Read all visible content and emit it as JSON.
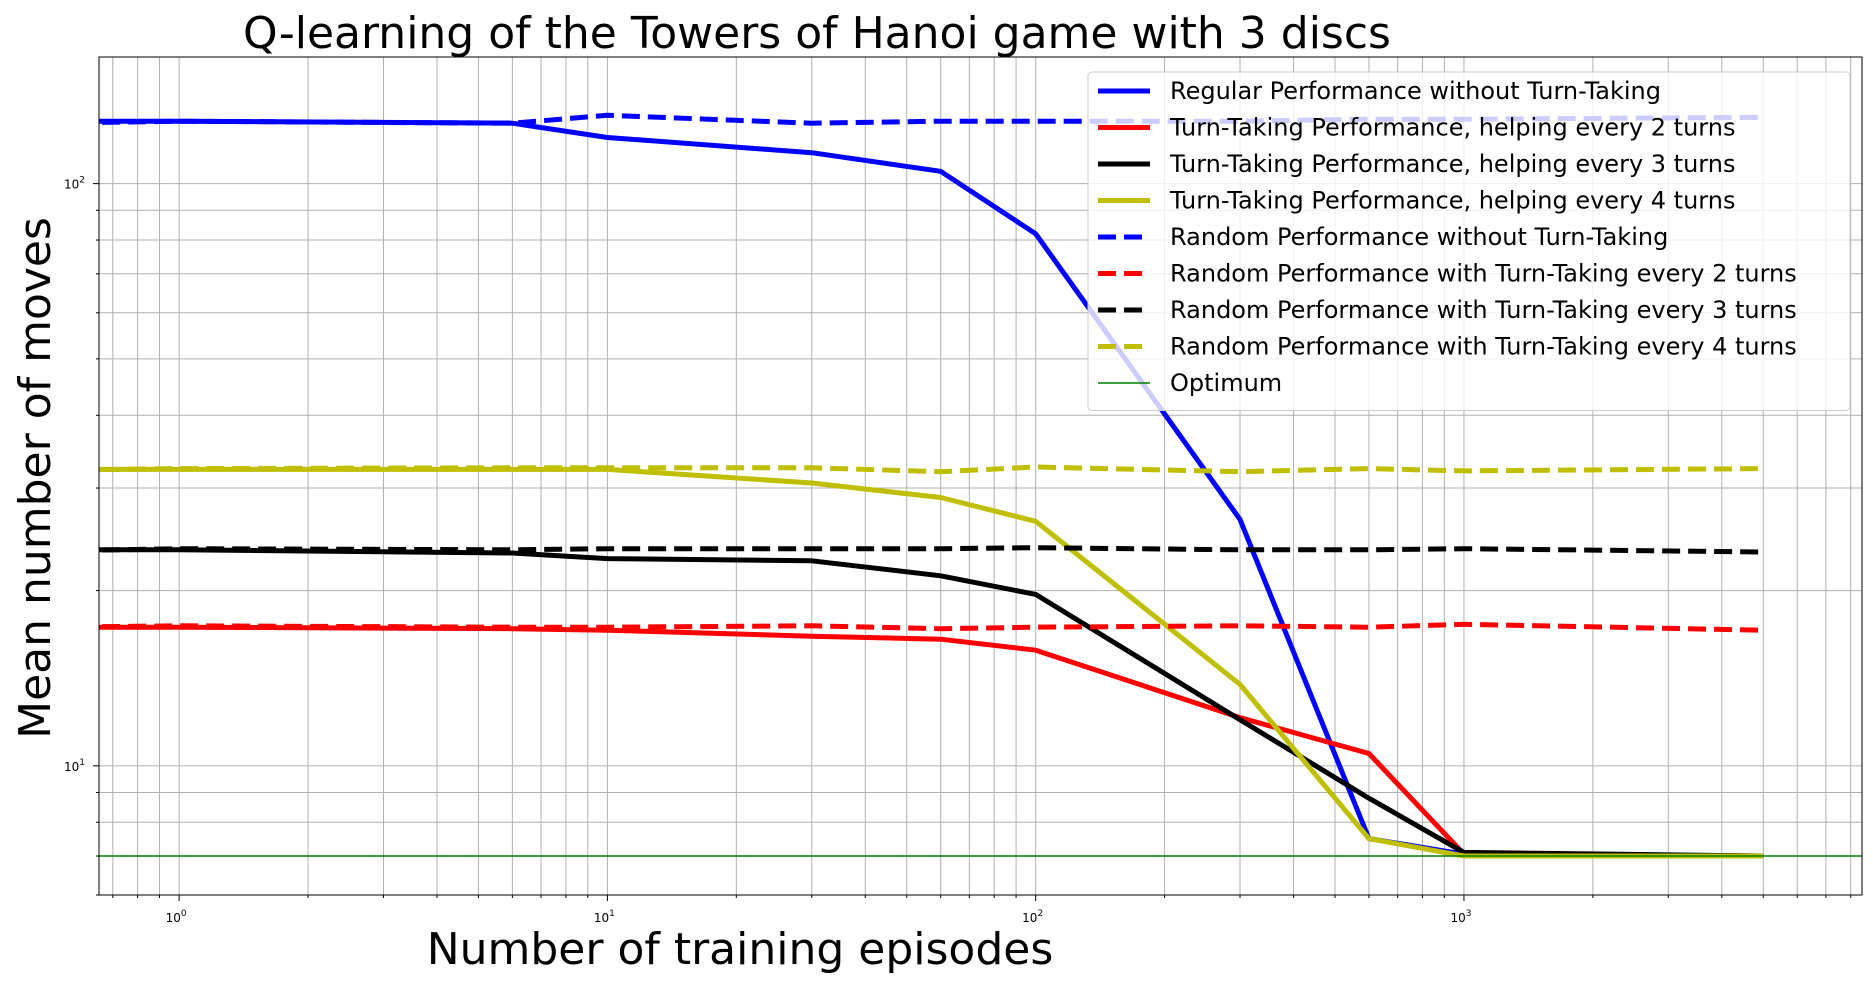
{
  "chart_data": {
    "type": "line",
    "title": "Q-learning of the Towers of Hanoi game with 3 discs",
    "xlabel": "Number of training episodes",
    "ylabel": "Mean number of moves",
    "x_scale": "log",
    "y_scale": "log",
    "xlim": [
      0.65,
      8500
    ],
    "ylim": [
      6.0,
      165
    ],
    "grid": true,
    "legend_position": "top-right",
    "x_ticks": [
      {
        "value": 1,
        "base": "10",
        "exp": "0"
      },
      {
        "value": 10,
        "base": "10",
        "exp": "1"
      },
      {
        "value": 100,
        "base": "10",
        "exp": "2"
      },
      {
        "value": 1000,
        "base": "10",
        "exp": "3"
      }
    ],
    "y_ticks": [
      {
        "value": 10,
        "base": "10",
        "exp": "1"
      },
      {
        "value": 100,
        "base": "10",
        "exp": "2"
      }
    ],
    "x": [
      0.5,
      1,
      6,
      10,
      30,
      60,
      100,
      300,
      600,
      1000,
      5000
    ],
    "series": [
      {
        "name": "Regular Performance without Turn-Taking",
        "color": "#0000ff",
        "style": "solid",
        "width": 5,
        "values": [
          128,
          128,
          127,
          120,
          113,
          105,
          82,
          26.5,
          7.5,
          7.05,
          7.0
        ]
      },
      {
        "name": "Turn-Taking Performance, helping every 2 turns",
        "color": "#ff0000",
        "style": "solid",
        "width": 5,
        "values": [
          17.3,
          17.3,
          17.2,
          17.1,
          16.7,
          16.5,
          15.8,
          12.1,
          10.5,
          7.05,
          7.0
        ]
      },
      {
        "name": "Turn-Taking Performance, helping every 3 turns",
        "color": "#000000",
        "style": "solid",
        "width": 5,
        "values": [
          23.5,
          23.5,
          23.2,
          22.7,
          22.5,
          21.2,
          19.7,
          12.0,
          8.8,
          7.1,
          7.0
        ]
      },
      {
        "name": "Turn-Taking Performance, helping every 4 turns",
        "color": "#bfbf00",
        "style": "solid",
        "width": 5,
        "values": [
          32.3,
          32.3,
          32.3,
          32.3,
          30.6,
          28.9,
          26.3,
          13.8,
          7.5,
          7.0,
          7.0
        ]
      },
      {
        "name": "Random Performance without Turn-Taking",
        "color": "#0000ff",
        "style": "dashed",
        "width": 5,
        "values": [
          127,
          128,
          127,
          131,
          127,
          128,
          128,
          128,
          129,
          129,
          130
        ]
      },
      {
        "name": "Random Performance with Turn-Taking every 2 turns",
        "color": "#ff0000",
        "style": "dashed",
        "width": 5,
        "values": [
          17.3,
          17.4,
          17.3,
          17.3,
          17.4,
          17.2,
          17.3,
          17.4,
          17.3,
          17.5,
          17.1
        ]
      },
      {
        "name": "Random Performance with Turn-Taking every 3 turns",
        "color": "#000000",
        "style": "dashed",
        "width": 5,
        "values": [
          23.4,
          23.6,
          23.5,
          23.6,
          23.6,
          23.6,
          23.7,
          23.5,
          23.5,
          23.6,
          23.3
        ]
      },
      {
        "name": "Random Performance with Turn-Taking every 4 turns",
        "color": "#bfbf00",
        "style": "dashed",
        "width": 5,
        "values": [
          32.2,
          32.4,
          32.5,
          32.5,
          32.5,
          32.0,
          32.6,
          32.0,
          32.4,
          32.1,
          32.4
        ]
      },
      {
        "name": "Optimum",
        "color": "#008000",
        "style": "solid",
        "width": 1.5,
        "constant": 7.0
      }
    ]
  }
}
